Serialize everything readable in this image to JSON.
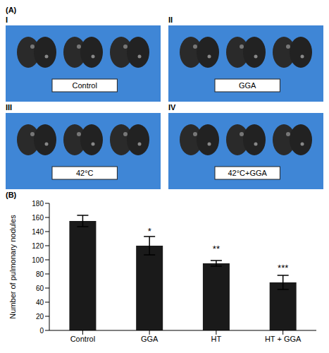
{
  "panel_a": {
    "label": "(A)",
    "photos": [
      {
        "numeral": "I",
        "label": "Control"
      },
      {
        "numeral": "II",
        "label": "GGA"
      },
      {
        "numeral": "III",
        "label": "42°C"
      },
      {
        "numeral": "IV",
        "label": "42°C+GGA"
      }
    ]
  },
  "chart_data": {
    "type": "bar",
    "panel_label": "(B)",
    "y_label": "Number of pulmonary nodules",
    "categories": [
      "Control",
      "GGA",
      "HT",
      "HT + GGA"
    ],
    "values": [
      155,
      120,
      95,
      68
    ],
    "errors": [
      8,
      13,
      4,
      10
    ],
    "annotations": [
      {
        "category": "GGA",
        "text": "*"
      },
      {
        "category": "HT",
        "text": "**"
      },
      {
        "category": "HT + GGA",
        "text": "***"
      }
    ],
    "color": "#1a1a1a",
    "ylim": [
      0,
      180
    ],
    "yticks": [
      0,
      20,
      40,
      60,
      80,
      100,
      120,
      140,
      160,
      180
    ],
    "grid": false
  }
}
